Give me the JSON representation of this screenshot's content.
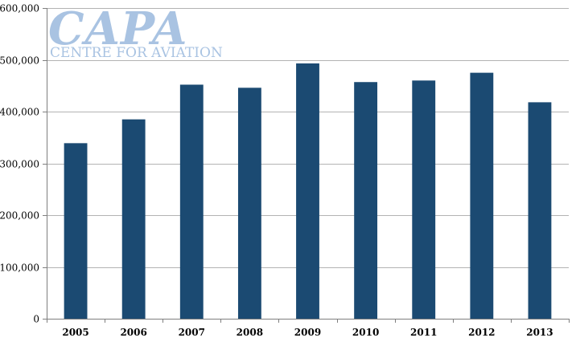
{
  "logo": {
    "main_text": "CAPA",
    "sub_text": "CENTRE FOR AVIATION",
    "color": "#a9c3e2"
  },
  "chart_data": {
    "type": "bar",
    "categories": [
      "2005",
      "2006",
      "2007",
      "2008",
      "2009",
      "2010",
      "2011",
      "2012",
      "2013"
    ],
    "values": [
      339000,
      385000,
      452000,
      446000,
      493000,
      457000,
      460000,
      475000,
      418000
    ],
    "title": "",
    "xlabel": "",
    "ylabel": "",
    "ylim": [
      0,
      600000
    ],
    "yticks": [
      0,
      100000,
      200000,
      300000,
      400000,
      500000,
      600000
    ],
    "ytick_labels": [
      "0",
      "100,000",
      "200,000",
      "300,000",
      "400,000",
      "500,000",
      "600,000"
    ],
    "grid": true,
    "bar_color": "#1b4a72",
    "grid_color": "#b3b3b3",
    "axis_color": "#7f7f7f"
  }
}
